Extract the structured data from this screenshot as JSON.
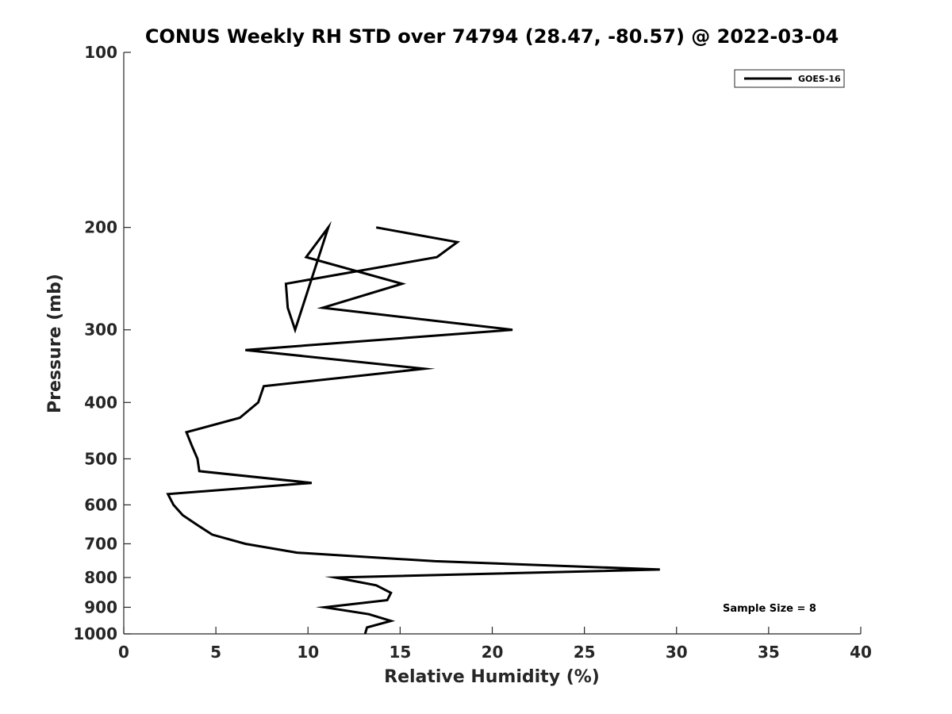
{
  "chart_data": {
    "type": "line",
    "title": "CONUS Weekly RH STD over 74794 (28.47, -80.57) @ 2022-03-04",
    "xlabel": "Relative Humidity (%)",
    "ylabel": "Pressure (mb)",
    "xlim": [
      0,
      40
    ],
    "ylim": [
      100,
      1000
    ],
    "yscale": "log",
    "y_reversed": true,
    "xticks": [
      0,
      5,
      10,
      15,
      20,
      25,
      30,
      35,
      40
    ],
    "yticks": [
      100,
      200,
      300,
      400,
      500,
      600,
      700,
      800,
      900,
      1000
    ],
    "grid": false,
    "legend_position": "top-right",
    "annotation": "Sample Size = 8",
    "series": [
      {
        "name": "GOES-16",
        "color": "#000000",
        "points": [
          [
            13.1,
            1000
          ],
          [
            13.2,
            975
          ],
          [
            14.5,
            950
          ],
          [
            13.3,
            925
          ],
          [
            10.9,
            900
          ],
          [
            14.3,
            875
          ],
          [
            14.5,
            850
          ],
          [
            13.7,
            825
          ],
          [
            11.5,
            800
          ],
          [
            29.1,
            775
          ],
          [
            16.9,
            750
          ],
          [
            9.4,
            725
          ],
          [
            6.6,
            700
          ],
          [
            4.8,
            675
          ],
          [
            4.0,
            650
          ],
          [
            3.2,
            625
          ],
          [
            2.7,
            600
          ],
          [
            2.4,
            575
          ],
          [
            10.2,
            550
          ],
          [
            4.1,
            525
          ],
          [
            4.0,
            500
          ],
          [
            3.7,
            475
          ],
          [
            3.4,
            450
          ],
          [
            6.3,
            425
          ],
          [
            7.3,
            400
          ],
          [
            7.6,
            375
          ],
          [
            16.3,
            350
          ],
          [
            6.6,
            325
          ],
          [
            21.1,
            300
          ],
          [
            10.8,
            275
          ],
          [
            15.1,
            250
          ],
          [
            9.9,
            225
          ],
          [
            11.1,
            200
          ],
          [
            9.3,
            300
          ],
          [
            8.9,
            275
          ],
          [
            8.8,
            250
          ],
          [
            17.0,
            225
          ],
          [
            18.1,
            212
          ],
          [
            13.7,
            200
          ]
        ]
      }
    ]
  }
}
